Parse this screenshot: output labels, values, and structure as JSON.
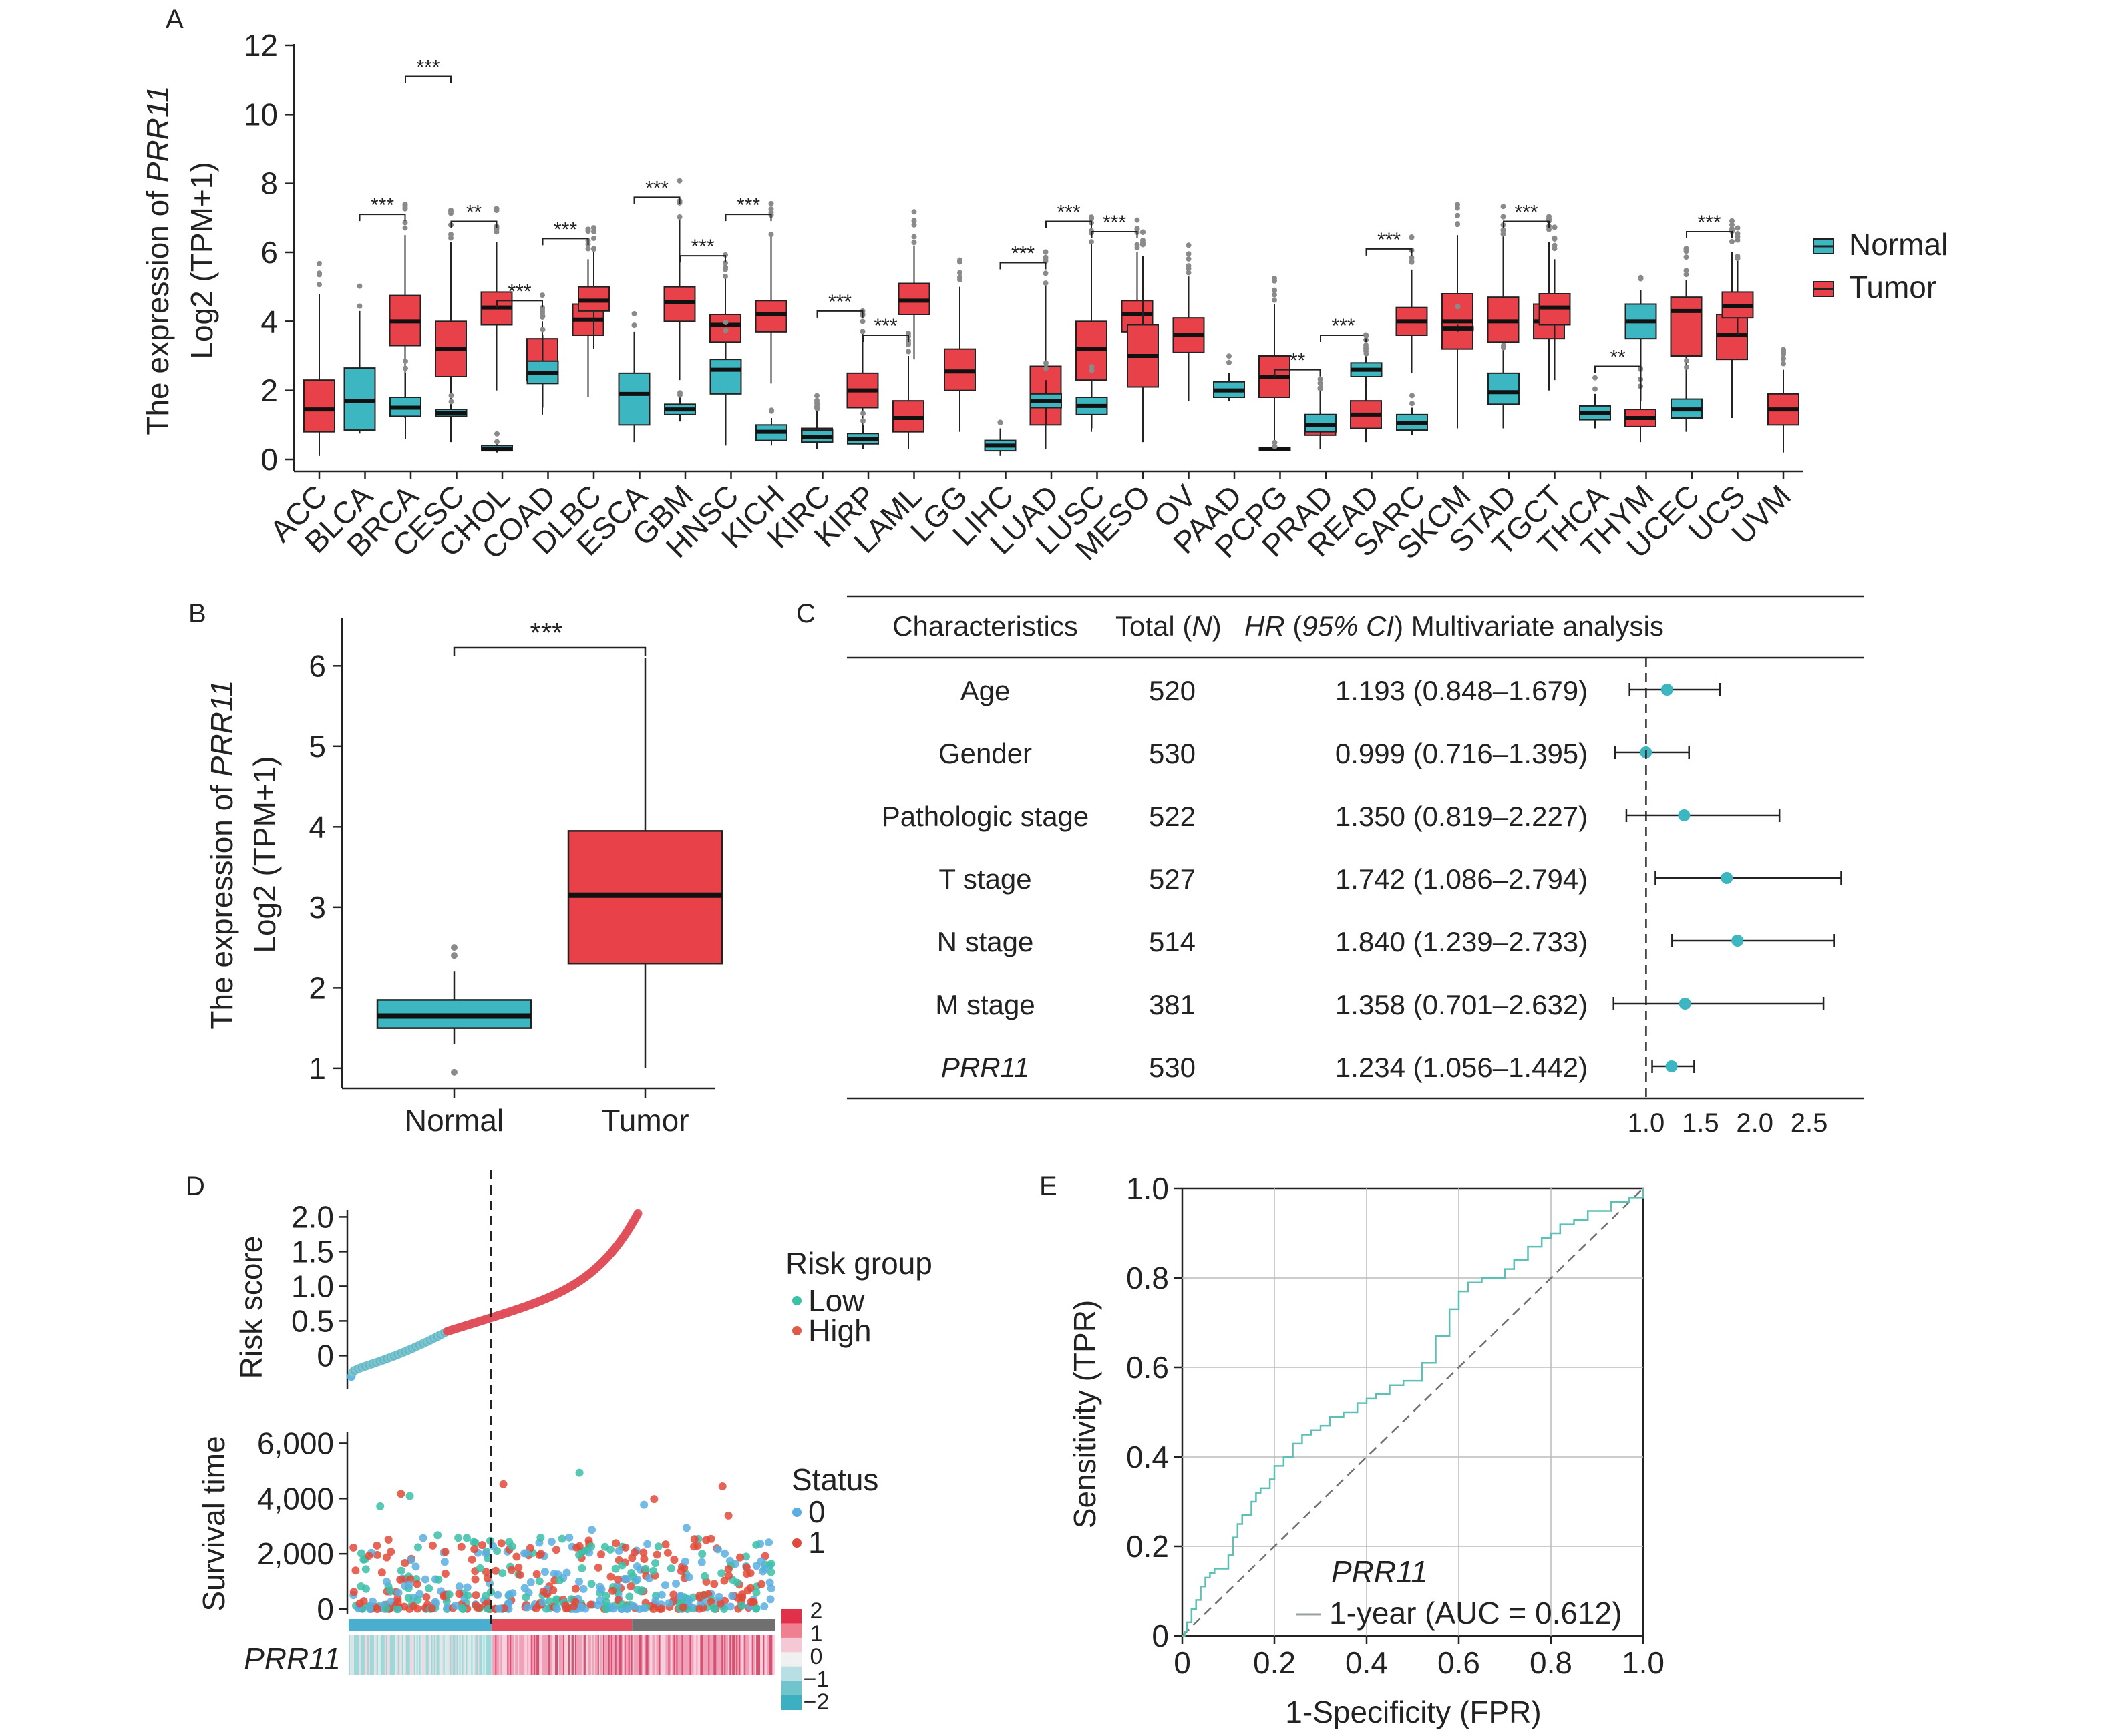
{
  "colors": {
    "normal": "#3cb6c0",
    "tumor": "#e8414a",
    "grid": "#bbbbbb",
    "dot": "#3cb6c0"
  },
  "panel_a": {
    "letter": "A",
    "ylabel_line1_prefix": "The expression of ",
    "ylabel_gene": "PRR11",
    "ylabel_line2": "Log2 (TPM+1)",
    "legend": {
      "normal": "Normal",
      "tumor": "Tumor"
    },
    "significance_labels": [
      "***",
      "**"
    ]
  },
  "panel_b": {
    "letter": "B",
    "ylabel_line1_prefix": "The expression of ",
    "ylabel_gene": "PRR11",
    "ylabel_line2": "Log2 (TPM+1)",
    "significance": "***"
  },
  "panel_c": {
    "letter": "C",
    "header": {
      "characteristics": "Characteristics",
      "total": "Total",
      "total_n": "N",
      "hr": "HR",
      "ci": "95% CI",
      "multi": "Multivariate analysis"
    },
    "rows": [
      {
        "name": "Age",
        "total": "520",
        "hr_text": "1.193 (0.848–1.679)",
        "hr": 1.193,
        "lo": 0.848,
        "hi": 1.679
      },
      {
        "name": "Gender",
        "total": "530",
        "hr_text": "0.999 (0.716–1.395)",
        "hr": 0.999,
        "lo": 0.716,
        "hi": 1.395
      },
      {
        "name": "Pathologic stage",
        "total": "522",
        "hr_text": "1.350 (0.819–2.227)",
        "hr": 1.35,
        "lo": 0.819,
        "hi": 2.227
      },
      {
        "name": "T stage",
        "total": "527",
        "hr_text": "1.742 (1.086–2.794)",
        "hr": 1.742,
        "lo": 1.086,
        "hi": 2.794
      },
      {
        "name": "N stage",
        "total": "514",
        "hr_text": "1.840 (1.239–2.733)",
        "hr": 1.84,
        "lo": 1.239,
        "hi": 2.733
      },
      {
        "name": "M stage",
        "total": "381",
        "hr_text": "1.358 (0.701–2.632)",
        "hr": 1.358,
        "lo": 0.701,
        "hi": 2.632
      },
      {
        "name": "PRR11",
        "total": "530",
        "hr_text": "1.234 (1.056–1.442)",
        "hr": 1.234,
        "lo": 1.056,
        "hi": 1.442,
        "italic": true
      }
    ],
    "axis_ticks": [
      "1.0",
      "1.5",
      "2.0",
      "2.5"
    ]
  },
  "panel_d": {
    "letter": "D",
    "risk_ylabel": "Risk score",
    "surv_ylabel": "Survival time",
    "gene_label": "PRR11",
    "risk_ticks": [
      "2.0",
      "1.5",
      "1.0",
      "0.5",
      "0"
    ],
    "surv_ticks": [
      "6,000",
      "4,000",
      "2,000",
      "0"
    ],
    "legend_risk": {
      "title": "Risk group",
      "low": "Low",
      "high": "High"
    },
    "legend_status": {
      "title": "Status",
      "s0": "0",
      "s1": "1"
    },
    "heat_ticks": [
      "2",
      "1",
      "0",
      "−1",
      "−2"
    ]
  },
  "panel_e": {
    "letter": "E",
    "xlabel": "1-Specificity (FPR)",
    "ylabel": "Sensitivity (TPR)",
    "ticks": [
      "0",
      "0.2",
      "0.4",
      "0.6",
      "0.8",
      "1.0"
    ],
    "gene_label": "PRR11",
    "legend_label": "1-year (AUC = 0.612)"
  },
  "chart_data": [
    {
      "type": "box",
      "panel": "A",
      "ylim": [
        0,
        12
      ],
      "yticks": [
        0,
        2,
        4,
        6,
        8,
        10,
        12
      ],
      "categories": [
        "ACC",
        "BLCA",
        "BRCA",
        "CESC",
        "CHOL",
        "COAD",
        "DLBC",
        "ESCA",
        "GBM",
        "HNSC",
        "KICH",
        "KIRC",
        "KIRP",
        "LAML",
        "LGG",
        "LIHC",
        "LUAD",
        "LUSC",
        "MESO",
        "OV",
        "PAAD",
        "PCPG",
        "PRAD",
        "READ",
        "SARC",
        "SKCM",
        "STAD",
        "TGCT",
        "THCA",
        "THYM",
        "UCEC",
        "UCS",
        "UVM"
      ],
      "boxes": [
        {
          "cat": "ACC",
          "group": "Tumor",
          "wlo": 0.1,
          "q1": 0.8,
          "med": 1.45,
          "q3": 2.3,
          "whi": 4.8
        },
        {
          "cat": "BLCA",
          "group": "Normal",
          "wlo": 0.75,
          "q1": 0.85,
          "med": 1.7,
          "q3": 2.65,
          "whi": 4.3
        },
        {
          "cat": "BLCA",
          "group": "Tumor",
          "wlo": 1.2,
          "q1": 3.3,
          "med": 4.0,
          "q3": 4.75,
          "whi": 6.5,
          "sig": "***"
        },
        {
          "cat": "BRCA",
          "group": "Normal",
          "wlo": 0.6,
          "q1": 1.25,
          "med": 1.5,
          "q3": 1.8,
          "whi": 2.5
        },
        {
          "cat": "BRCA",
          "group": "Tumor",
          "wlo": 0.5,
          "q1": 2.4,
          "med": 3.2,
          "q3": 4.0,
          "whi": 6.3,
          "sig": "***"
        },
        {
          "cat": "CESC",
          "group": "Normal",
          "wlo": 1.2,
          "q1": 1.25,
          "med": 1.35,
          "q3": 1.45,
          "whi": 1.5
        },
        {
          "cat": "CESC",
          "group": "Tumor",
          "wlo": 2.0,
          "q1": 3.9,
          "med": 4.4,
          "q3": 4.85,
          "whi": 6.3,
          "sig": "**"
        },
        {
          "cat": "CHOL",
          "group": "Normal",
          "wlo": 0.2,
          "q1": 0.25,
          "med": 0.3,
          "q3": 0.4,
          "whi": 0.45
        },
        {
          "cat": "CHOL",
          "group": "Tumor",
          "wlo": 1.3,
          "q1": 2.3,
          "med": 2.7,
          "q3": 3.5,
          "whi": 4.0,
          "sig": "***"
        },
        {
          "cat": "COAD",
          "group": "Normal",
          "wlo": 1.5,
          "q1": 2.2,
          "med": 2.5,
          "q3": 2.85,
          "whi": 3.6
        },
        {
          "cat": "COAD",
          "group": "Tumor",
          "wlo": 1.8,
          "q1": 3.6,
          "med": 4.05,
          "q3": 4.5,
          "whi": 5.8,
          "sig": "***"
        },
        {
          "cat": "DLBC",
          "group": "Tumor",
          "wlo": 3.2,
          "q1": 4.3,
          "med": 4.6,
          "q3": 5.0,
          "whi": 6.0
        },
        {
          "cat": "ESCA",
          "group": "Normal",
          "wlo": 0.5,
          "q1": 1.0,
          "med": 1.9,
          "q3": 2.5,
          "whi": 3.7
        },
        {
          "cat": "ESCA",
          "group": "Tumor",
          "wlo": 2.3,
          "q1": 4.0,
          "med": 4.55,
          "q3": 5.0,
          "whi": 7.0,
          "sig": "***"
        },
        {
          "cat": "GBM",
          "group": "Normal",
          "wlo": 1.1,
          "q1": 1.3,
          "med": 1.45,
          "q3": 1.6,
          "whi": 1.8
        },
        {
          "cat": "GBM",
          "group": "Tumor",
          "wlo": 1.5,
          "q1": 3.4,
          "med": 3.9,
          "q3": 4.2,
          "whi": 5.3,
          "sig": "***"
        },
        {
          "cat": "HNSC",
          "group": "Normal",
          "wlo": 0.4,
          "q1": 1.9,
          "med": 2.6,
          "q3": 2.9,
          "whi": 3.4
        },
        {
          "cat": "HNSC",
          "group": "Tumor",
          "wlo": 2.2,
          "q1": 3.7,
          "med": 4.2,
          "q3": 4.6,
          "whi": 6.5,
          "sig": "***"
        },
        {
          "cat": "KICH",
          "group": "Normal",
          "wlo": 0.4,
          "q1": 0.55,
          "med": 0.8,
          "q3": 1.0,
          "whi": 1.2
        },
        {
          "cat": "KICH",
          "group": "Tumor",
          "wlo": 0.3,
          "q1": 0.5,
          "med": 0.7,
          "q3": 0.9,
          "whi": 1.4
        },
        {
          "cat": "KIRC",
          "group": "Normal",
          "wlo": 0.3,
          "q1": 0.5,
          "med": 0.65,
          "q3": 0.85,
          "whi": 1.2
        },
        {
          "cat": "KIRC",
          "group": "Tumor",
          "wlo": 0.6,
          "q1": 1.5,
          "med": 2.0,
          "q3": 2.5,
          "whi": 3.7,
          "sig": "***"
        },
        {
          "cat": "KIRP",
          "group": "Normal",
          "wlo": 0.3,
          "q1": 0.45,
          "med": 0.6,
          "q3": 0.75,
          "whi": 1.0
        },
        {
          "cat": "KIRP",
          "group": "Tumor",
          "wlo": 0.3,
          "q1": 0.8,
          "med": 1.2,
          "q3": 1.7,
          "whi": 3.0,
          "sig": "***"
        },
        {
          "cat": "LAML",
          "group": "Tumor",
          "wlo": 2.9,
          "q1": 4.2,
          "med": 4.6,
          "q3": 5.1,
          "whi": 6.2
        },
        {
          "cat": "LGG",
          "group": "Tumor",
          "wlo": 0.8,
          "q1": 2.0,
          "med": 2.55,
          "q3": 3.2,
          "whi": 5.0
        },
        {
          "cat": "LIHC",
          "group": "Normal",
          "wlo": 0.1,
          "q1": 0.25,
          "med": 0.4,
          "q3": 0.55,
          "whi": 0.9
        },
        {
          "cat": "LIHC",
          "group": "Tumor",
          "wlo": 0.3,
          "q1": 1.0,
          "med": 1.8,
          "q3": 2.7,
          "whi": 5.1,
          "sig": "***"
        },
        {
          "cat": "LUAD",
          "group": "Normal",
          "wlo": 1.0,
          "q1": 1.5,
          "med": 1.7,
          "q3": 1.9,
          "whi": 2.3
        },
        {
          "cat": "LUAD",
          "group": "Tumor",
          "wlo": 0.8,
          "q1": 2.3,
          "med": 3.2,
          "q3": 4.0,
          "whi": 6.3,
          "sig": "***"
        },
        {
          "cat": "LUSC",
          "group": "Normal",
          "wlo": 0.9,
          "q1": 1.3,
          "med": 1.55,
          "q3": 1.8,
          "whi": 2.3
        },
        {
          "cat": "LUSC",
          "group": "Tumor",
          "wlo": 2.3,
          "q1": 3.7,
          "med": 4.2,
          "q3": 4.6,
          "whi": 6.0,
          "sig": "***"
        },
        {
          "cat": "MESO",
          "group": "Tumor",
          "wlo": 0.5,
          "q1": 2.1,
          "med": 3.0,
          "q3": 3.9,
          "whi": 5.9
        },
        {
          "cat": "OV",
          "group": "Tumor",
          "wlo": 1.7,
          "q1": 3.1,
          "med": 3.6,
          "q3": 4.1,
          "whi": 5.3
        },
        {
          "cat": "PAAD",
          "group": "Normal",
          "wlo": 1.7,
          "q1": 1.8,
          "med": 2.0,
          "q3": 2.25,
          "whi": 2.5
        },
        {
          "cat": "PAAD",
          "group": "Tumor",
          "wlo": 0.3,
          "q1": 1.8,
          "med": 2.4,
          "q3": 3.0,
          "whi": 4.5
        },
        {
          "cat": "PCPG",
          "group": "Normal",
          "wlo": 0.25,
          "q1": 0.27,
          "med": 0.3,
          "q3": 0.34,
          "whi": 0.37
        },
        {
          "cat": "PCPG",
          "group": "Tumor",
          "wlo": 0.3,
          "q1": 0.7,
          "med": 1.0,
          "q3": 1.3,
          "whi": 2.0,
          "sig": "**"
        },
        {
          "cat": "PRAD",
          "group": "Normal",
          "wlo": 0.6,
          "q1": 0.8,
          "med": 1.0,
          "q3": 1.3,
          "whi": 1.7
        },
        {
          "cat": "PRAD",
          "group": "Tumor",
          "wlo": 0.5,
          "q1": 0.9,
          "med": 1.3,
          "q3": 1.7,
          "whi": 3.0,
          "sig": "***"
        },
        {
          "cat": "READ",
          "group": "Normal",
          "wlo": 2.3,
          "q1": 2.4,
          "med": 2.6,
          "q3": 2.8,
          "whi": 3.0
        },
        {
          "cat": "READ",
          "group": "Tumor",
          "wlo": 2.5,
          "q1": 3.6,
          "med": 4.0,
          "q3": 4.4,
          "whi": 5.5,
          "sig": "***"
        },
        {
          "cat": "SARC",
          "group": "Normal",
          "wlo": 0.7,
          "q1": 0.85,
          "med": 1.05,
          "q3": 1.3,
          "whi": 1.5
        },
        {
          "cat": "SARC",
          "group": "Tumor",
          "wlo": 0.9,
          "q1": 3.2,
          "med": 4.0,
          "q3": 4.8,
          "whi": 6.5
        },
        {
          "cat": "SKCM",
          "group": "Normal",
          "wlo": 3.7,
          "q1": 3.75,
          "med": 3.8,
          "q3": 3.85,
          "whi": 3.9
        },
        {
          "cat": "SKCM",
          "group": "Tumor",
          "wlo": 0.9,
          "q1": 3.4,
          "med": 4.0,
          "q3": 4.7,
          "whi": 6.5
        },
        {
          "cat": "STAD",
          "group": "Normal",
          "wlo": 1.4,
          "q1": 1.6,
          "med": 1.95,
          "q3": 2.5,
          "whi": 3.0
        },
        {
          "cat": "STAD",
          "group": "Tumor",
          "wlo": 2.0,
          "q1": 3.5,
          "med": 4.0,
          "q3": 4.5,
          "whi": 6.3,
          "sig": "***"
        },
        {
          "cat": "TGCT",
          "group": "Tumor",
          "wlo": 2.3,
          "q1": 3.9,
          "med": 4.4,
          "q3": 4.8,
          "whi": 5.8
        },
        {
          "cat": "THCA",
          "group": "Normal",
          "wlo": 0.9,
          "q1": 1.15,
          "med": 1.35,
          "q3": 1.55,
          "whi": 1.9
        },
        {
          "cat": "THCA",
          "group": "Tumor",
          "wlo": 0.5,
          "q1": 0.95,
          "med": 1.2,
          "q3": 1.45,
          "whi": 2.1,
          "sig": "**"
        },
        {
          "cat": "THYM",
          "group": "Normal",
          "wlo": 1.7,
          "q1": 3.5,
          "med": 4.0,
          "q3": 4.5,
          "whi": 4.9
        },
        {
          "cat": "THYM",
          "group": "Tumor",
          "wlo": 0.8,
          "q1": 3.0,
          "med": 4.3,
          "q3": 4.7,
          "whi": 5.2
        },
        {
          "cat": "UCEC",
          "group": "Normal",
          "wlo": 1.0,
          "q1": 1.2,
          "med": 1.45,
          "q3": 1.75,
          "whi": 2.4
        },
        {
          "cat": "UCEC",
          "group": "Tumor",
          "wlo": 1.2,
          "q1": 2.9,
          "med": 3.6,
          "q3": 4.2,
          "whi": 6.0,
          "sig": "***"
        },
        {
          "cat": "UCS",
          "group": "Tumor",
          "wlo": 3.6,
          "q1": 4.1,
          "med": 4.45,
          "q3": 4.85,
          "whi": 5.8
        },
        {
          "cat": "UVM",
          "group": "Tumor",
          "wlo": 0.2,
          "q1": 1.0,
          "med": 1.45,
          "q3": 1.9,
          "whi": 2.6
        }
      ]
    },
    {
      "type": "box",
      "panel": "B",
      "categories": [
        "Normal",
        "Tumor"
      ],
      "ylim": [
        0.75,
        6.6
      ],
      "yticks": [
        1,
        2,
        3,
        4,
        5,
        6
      ],
      "boxes": [
        {
          "cat": "Normal",
          "wlo": 1.3,
          "q1": 1.5,
          "med": 1.65,
          "q3": 1.85,
          "whi": 2.2,
          "outliers": [
            2.4,
            2.5,
            0.95
          ]
        },
        {
          "cat": "Tumor",
          "wlo": 1.0,
          "q1": 2.3,
          "med": 3.15,
          "q3": 3.95,
          "whi": 6.1
        }
      ]
    },
    {
      "type": "forest",
      "panel": "C",
      "xlim": [
        0.85,
        3.0
      ],
      "xticks": [
        1.0,
        1.5,
        2.0,
        2.5
      ],
      "reference": 1.0,
      "rows": [
        {
          "name": "Age",
          "hr": 1.193,
          "lo": 0.848,
          "hi": 1.679
        },
        {
          "name": "Gender",
          "hr": 0.999,
          "lo": 0.716,
          "hi": 1.395
        },
        {
          "name": "Pathologic stage",
          "hr": 1.35,
          "lo": 0.819,
          "hi": 2.227
        },
        {
          "name": "T stage",
          "hr": 1.742,
          "lo": 1.086,
          "hi": 2.794
        },
        {
          "name": "N stage",
          "hr": 1.84,
          "lo": 1.239,
          "hi": 2.733
        },
        {
          "name": "M stage",
          "hr": 1.358,
          "lo": 0.701,
          "hi": 2.632
        },
        {
          "name": "PRR11",
          "hr": 1.234,
          "lo": 1.056,
          "hi": 1.442
        }
      ]
    },
    {
      "type": "scatter",
      "panel": "D",
      "subplots": [
        "risk score curve",
        "survival time scatter",
        "PRR11 expression heatmap"
      ],
      "risk_ylim": [
        -0.4,
        2.1
      ],
      "survival_ylim": [
        0,
        7000
      ],
      "cutoff_fraction": 0.335,
      "risk_low_range": [
        -0.3,
        0.35
      ],
      "risk_high_range": [
        0.35,
        2.05
      ]
    },
    {
      "type": "line",
      "panel": "E",
      "xlim": [
        0,
        1
      ],
      "ylim": [
        0,
        1
      ],
      "series": [
        {
          "name": "1-year (AUC = 0.612)",
          "x": [
            0,
            0.005,
            0.01,
            0.02,
            0.03,
            0.04,
            0.05,
            0.06,
            0.07,
            0.09,
            0.1,
            0.11,
            0.12,
            0.13,
            0.14,
            0.15,
            0.16,
            0.17,
            0.19,
            0.2,
            0.22,
            0.24,
            0.26,
            0.28,
            0.3,
            0.32,
            0.35,
            0.38,
            0.4,
            0.42,
            0.45,
            0.48,
            0.5,
            0.52,
            0.55,
            0.58,
            0.6,
            0.62,
            0.65,
            0.68,
            0.7,
            0.72,
            0.75,
            0.78,
            0.8,
            0.82,
            0.85,
            0.88,
            0.9,
            0.93,
            0.95,
            0.97,
            1.0
          ],
          "y": [
            0,
            0.01,
            0.03,
            0.06,
            0.08,
            0.11,
            0.13,
            0.14,
            0.15,
            0.15,
            0.18,
            0.22,
            0.25,
            0.27,
            0.27,
            0.3,
            0.32,
            0.33,
            0.35,
            0.38,
            0.4,
            0.43,
            0.45,
            0.46,
            0.47,
            0.49,
            0.5,
            0.52,
            0.53,
            0.54,
            0.56,
            0.57,
            0.57,
            0.61,
            0.67,
            0.73,
            0.77,
            0.79,
            0.8,
            0.8,
            0.82,
            0.84,
            0.87,
            0.89,
            0.9,
            0.92,
            0.93,
            0.95,
            0.95,
            0.97,
            0.97,
            0.98,
            1.0
          ]
        }
      ],
      "reference_diagonal": true
    }
  ]
}
